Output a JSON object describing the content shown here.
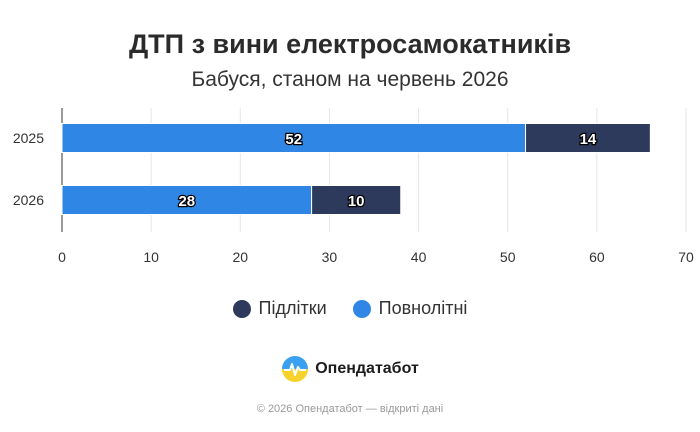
{
  "chart_data": {
    "type": "bar",
    "orientation": "horizontal",
    "stacked": true,
    "title": "ДТП з вини електросамокатників",
    "subtitle": "Бабуся, станом на червень 2026",
    "categories": [
      "2025",
      "2026"
    ],
    "series": [
      {
        "name": "Повнолітні",
        "values": [
          52,
          28
        ],
        "color": "#2f86e4"
      },
      {
        "name": "Підлітки",
        "values": [
          14,
          10
        ],
        "color": "#2d3a5c"
      }
    ],
    "xlim": [
      0,
      70
    ],
    "xticks": [
      0,
      10,
      20,
      30,
      40,
      50,
      60,
      70
    ],
    "grid": true,
    "legend": {
      "position": "bottom",
      "order": [
        "Підлітки",
        "Повнолітні"
      ]
    }
  },
  "legend": {
    "items": [
      {
        "label": "Підлітки",
        "color": "#2d3a5c"
      },
      {
        "label": "Повнолітні",
        "color": "#2f86e4"
      }
    ]
  },
  "brand": {
    "name": "Опендатабот",
    "icon": "opendatabot-logo-icon"
  },
  "footer": {
    "text": "© 2026 Опендатабот — відкриті дані"
  }
}
